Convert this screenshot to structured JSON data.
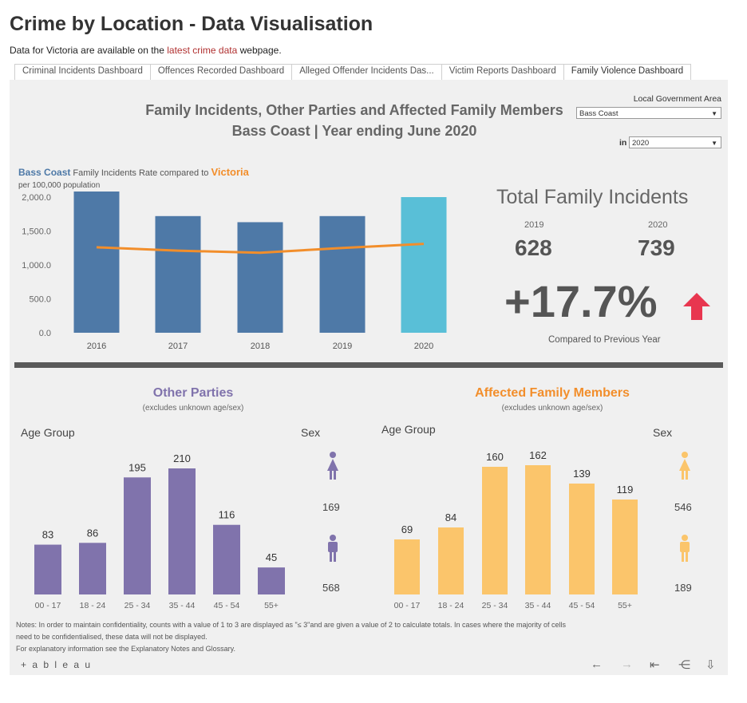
{
  "header": {
    "title": "Crime by Location - Data Visualisation",
    "subtitle_pre": "Data for Victoria are available on the ",
    "subtitle_link": "latest crime data",
    "subtitle_post": " webpage."
  },
  "tabs": [
    {
      "label": "Criminal Incidents Dashboard"
    },
    {
      "label": "Offences Recorded Dashboard"
    },
    {
      "label": "Alleged Offender Incidents Das..."
    },
    {
      "label": "Victim Reports Dashboard"
    },
    {
      "label": "Family Violence Dashboard"
    }
  ],
  "dashboard": {
    "title_line1": "Family Incidents, Other Parties and Affected Family Members",
    "title_line2": "Bass Coast  |  Year ending June 2020",
    "lga_label": "Local Government Area",
    "lga_value": "Bass Coast",
    "year_prefix": "in",
    "year_value": "2020",
    "legend_area": "Bass Coast",
    "legend_mid": " Family Incidents Rate compared to ",
    "legend_state": "Victoria",
    "legend_sub": "per 100,000 population",
    "total_title": "Total Family Incidents",
    "year_prev": "2019",
    "year_curr": "2020",
    "count_prev": "628",
    "count_curr": "739",
    "change": "+17.7%",
    "compare_text": "Compared to Previous Year",
    "colors": {
      "area": "#4e79a7",
      "area_current": "#59bfd7",
      "state": "#f28e2b",
      "up_arrow": "#e8364f",
      "other": "#8073ac",
      "affected": "#fbc56b"
    }
  },
  "chart_data": [
    {
      "type": "bar",
      "categories": [
        "2016",
        "2017",
        "2018",
        "2019",
        "2020"
      ],
      "series": [
        {
          "name": "Bass Coast",
          "values": [
            2125,
            1720,
            1630,
            1720,
            2000
          ]
        },
        {
          "name": "Victoria",
          "type": "line",
          "values": [
            1260,
            1210,
            1180,
            1250,
            1310
          ]
        }
      ],
      "yticks": [
        "2,000.0",
        "1,500.0",
        "1,000.0",
        "500.0",
        "0.0"
      ],
      "ylim": [
        0,
        2200
      ]
    },
    {
      "type": "bar",
      "title": "Other Parties",
      "subtitle": "(excludes unknown age/sex)",
      "xlabel": "Age Group",
      "categories": [
        "00 - 17",
        "18 - 24",
        "25 - 34",
        "35 - 44",
        "45 - 54",
        "55+"
      ],
      "values": [
        83,
        86,
        195,
        210,
        116,
        45
      ],
      "sex_label": "Sex",
      "sex": {
        "female": 169,
        "male": 568
      }
    },
    {
      "type": "bar",
      "title": "Affected Family Members",
      "subtitle": "(excludes unknown age/sex)",
      "xlabel": "Age Group",
      "categories": [
        "00 - 17",
        "18 - 24",
        "25 - 34",
        "35 - 44",
        "45 - 54",
        "55+"
      ],
      "values": [
        69,
        84,
        160,
        162,
        139,
        119
      ],
      "sex_label": "Sex",
      "sex": {
        "female": 546,
        "male": 189
      }
    }
  ],
  "notes": {
    "line1": "Notes:  In order to maintain confidentiality, counts with a value of 1 to 3  are displayed as \"≤ 3\"and are given a value of 2 to calculate totals. In cases where the majority of cells",
    "line2": "need to be confidentialised, these data will not be displayed.",
    "line3": "For explanatory information see the Explanatory Notes and Glossary."
  },
  "footer": {
    "logo": "+ a b l e a u",
    "icons": [
      "undo-icon",
      "redo-icon",
      "revert-icon",
      "share-icon",
      "download-icon"
    ]
  }
}
